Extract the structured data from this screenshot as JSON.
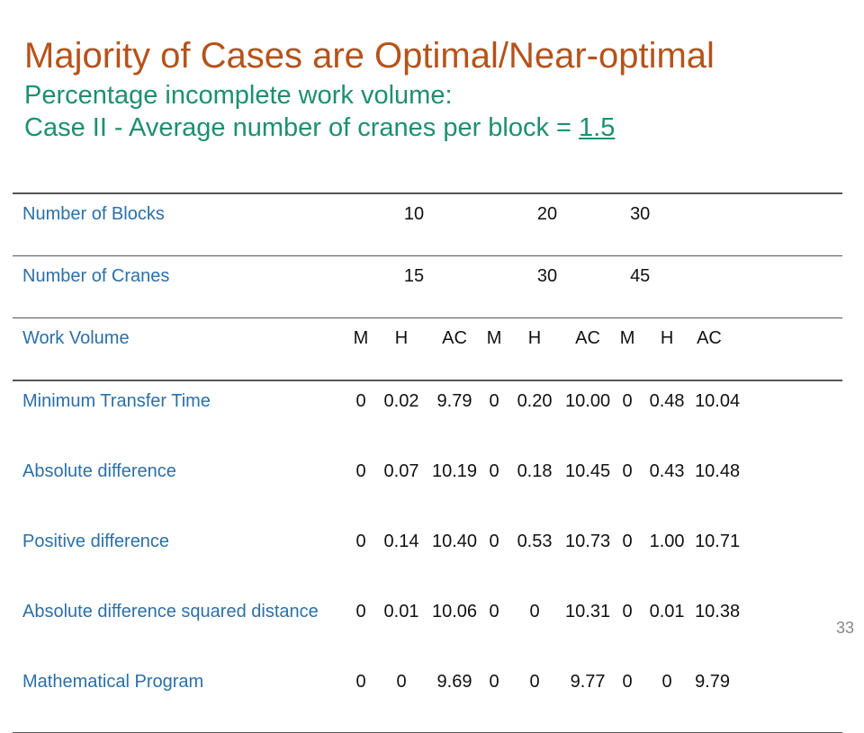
{
  "slide": {
    "title": "Majority of Cases are Optimal/Near-optimal",
    "subtitle_line1": "Percentage incomplete work volume:",
    "subtitle_line2_prefix": "Case II - Average number of cranes per block = ",
    "subtitle_line2_value": "1.5",
    "page_number": "33"
  },
  "table": {
    "blocks_row": {
      "label": "Number of Blocks",
      "values": [
        "10",
        "20",
        "30"
      ]
    },
    "cranes_row": {
      "label": "Number of Cranes",
      "values": [
        "15",
        "30",
        "45"
      ]
    },
    "work_volume_row": {
      "label": "Work Volume",
      "cols": [
        "M",
        "H",
        "AC",
        "M",
        "H",
        "AC",
        "M",
        "H",
        "AC"
      ]
    },
    "rows": [
      {
        "label": "Minimum Transfer Time",
        "values": [
          "0",
          "0.02",
          "9.79",
          "0",
          "0.20",
          "10.00",
          "0",
          "0.48",
          "10.04"
        ]
      },
      {
        "label": "Absolute difference",
        "values": [
          "0",
          "0.07",
          "10.19",
          "0",
          "0.18",
          "10.45",
          "0",
          "0.43",
          "10.48"
        ]
      },
      {
        "label": "Positive difference",
        "values": [
          "0",
          "0.14",
          "10.40",
          "0",
          "0.53",
          "10.73",
          "0",
          "1.00",
          "10.71"
        ]
      },
      {
        "label": "Absolute difference squared distance",
        "values": [
          "0",
          "0.01",
          "10.06",
          "0",
          "0",
          "10.31",
          "0",
          "0.01",
          "10.38"
        ]
      },
      {
        "label": "Mathematical Program",
        "values": [
          "0",
          "0",
          "9.69",
          "0",
          "0",
          "9.77",
          "0",
          "0",
          "9.79"
        ]
      }
    ]
  }
}
